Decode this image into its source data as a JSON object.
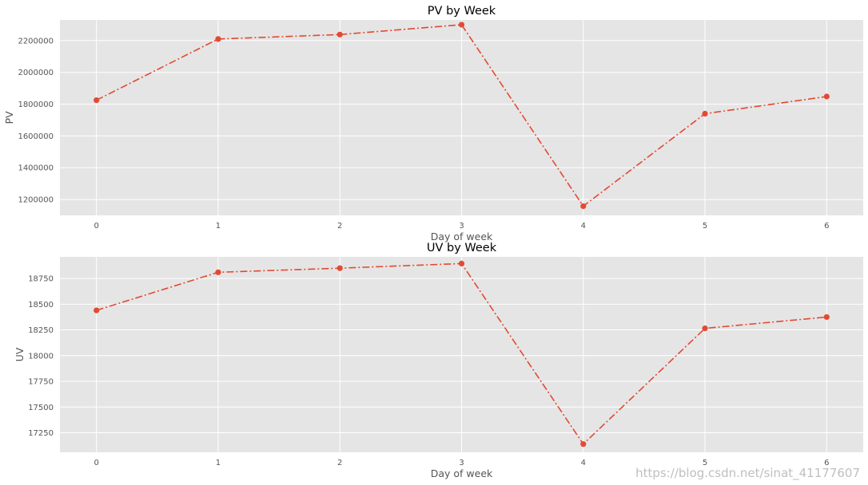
{
  "chart_data": [
    {
      "type": "line",
      "title": "PV by Week",
      "xlabel": "Day of week",
      "ylabel": "PV",
      "x": [
        0,
        1,
        2,
        3,
        4,
        5,
        6
      ],
      "values": [
        1825000,
        2210000,
        2238000,
        2300000,
        1158000,
        1740000,
        1848000
      ],
      "xlim": [
        -0.3,
        6.3
      ],
      "ylim": [
        1100000,
        2330000
      ],
      "yticks": [
        1200000,
        1400000,
        1600000,
        1800000,
        2000000,
        2200000
      ],
      "ytick_labels": [
        "1200000",
        "1400000",
        "1600000",
        "1800000",
        "2000000",
        "2200000"
      ],
      "xticks": [
        0,
        1,
        2,
        3,
        4,
        5,
        6
      ],
      "xtick_labels": [
        "0",
        "1",
        "2",
        "3",
        "4",
        "5",
        "6"
      ],
      "grid": true,
      "line_style": "dash-dot",
      "marker": "circle"
    },
    {
      "type": "line",
      "title": "UV by Week",
      "xlabel": "Day of week",
      "ylabel": "UV",
      "x": [
        0,
        1,
        2,
        3,
        4,
        5,
        6
      ],
      "values": [
        18440,
        18810,
        18850,
        18895,
        17140,
        18265,
        18375
      ],
      "xlim": [
        -0.3,
        6.3
      ],
      "ylim": [
        17060,
        18960
      ],
      "yticks": [
        17250,
        17500,
        17750,
        18000,
        18250,
        18500,
        18750
      ],
      "ytick_labels": [
        "17250",
        "17500",
        "17750",
        "18000",
        "18250",
        "18500",
        "18750"
      ],
      "xticks": [
        0,
        1,
        2,
        3,
        4,
        5,
        6
      ],
      "xtick_labels": [
        "0",
        "1",
        "2",
        "3",
        "4",
        "5",
        "6"
      ],
      "grid": true,
      "line_style": "dash-dot",
      "marker": "circle"
    }
  ],
  "colors": {
    "plot_background": "#e5e5e5",
    "grid": "#ffffff",
    "line": "#e24a33",
    "tick_text": "#555555"
  },
  "watermark": "https://blog.csdn.net/sinat_41177607"
}
